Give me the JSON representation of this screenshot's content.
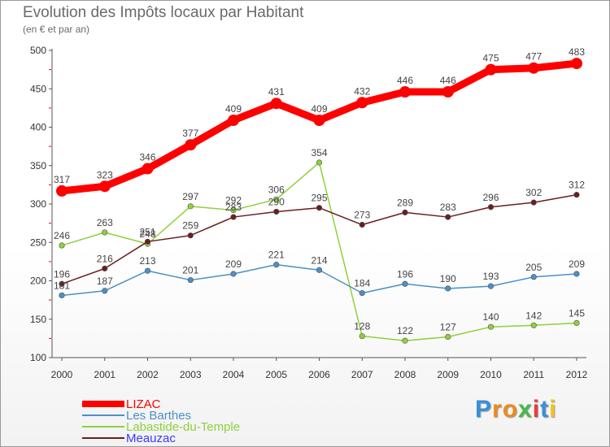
{
  "chart_data": {
    "type": "line",
    "title": "Evolution des Impôts locaux par Habitant",
    "subtitle": "(en € et par an)",
    "xlabel": "",
    "ylabel": "",
    "x": [
      2000,
      2001,
      2002,
      2003,
      2004,
      2005,
      2006,
      2007,
      2008,
      2009,
      2010,
      2011,
      2012
    ],
    "ylim": [
      100,
      500
    ],
    "yticks": [
      100,
      150,
      200,
      250,
      300,
      350,
      400,
      450,
      500
    ],
    "grid": false,
    "legend_position": "bottom-left",
    "series": [
      {
        "name": "LIZAC",
        "color": "#ff0000",
        "values": [
          317,
          323,
          346,
          377,
          409,
          431,
          409,
          432,
          446,
          446,
          475,
          477,
          483
        ]
      },
      {
        "name": "Les Barthes",
        "color": "#4a90c8",
        "values": [
          181,
          187,
          213,
          201,
          209,
          221,
          214,
          184,
          196,
          190,
          193,
          205,
          209
        ]
      },
      {
        "name": "Labastide-du-Temple",
        "color": "#8ed13c",
        "values": [
          246,
          263,
          248,
          297,
          292,
          306,
          354,
          128,
          122,
          127,
          140,
          142,
          145
        ]
      },
      {
        "name": "Meauzac",
        "color": "#6b1e1e",
        "values": [
          196,
          216,
          251,
          259,
          283,
          290,
          295,
          273,
          289,
          283,
          296,
          302,
          312
        ]
      }
    ]
  },
  "logo": {
    "letters": [
      "P",
      "r",
      "o",
      "x",
      "i",
      "t",
      "i"
    ],
    "colors": [
      "#3a8fd8",
      "#f08a1c",
      "#f08a1c",
      "#46b94a",
      "#e83c3c",
      "#3a8fd8",
      "#f2c21a"
    ]
  }
}
